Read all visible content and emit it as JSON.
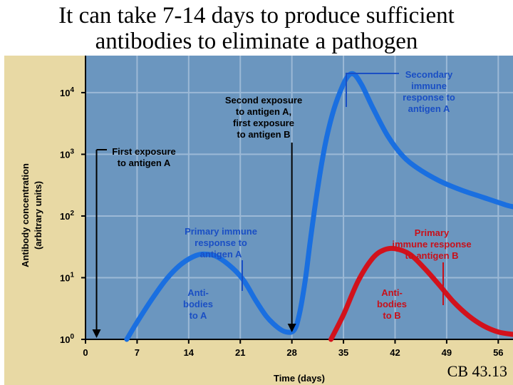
{
  "slide": {
    "title_line1": "It can take 7-14 days to produce sufficient",
    "title_line2": "antibodies to eliminate a pathogen",
    "footer": "CB 43.13"
  },
  "colors": {
    "frame": "#e8d9a4",
    "plot_bg": "#6b96bf",
    "grid": "#9cb9d6",
    "series_a": "#1a6fe0",
    "series_b": "#d2121c",
    "label_dark": "#000000",
    "label_blue": "#1a4fc4",
    "label_red": "#c8101a"
  },
  "chart_data": {
    "type": "line",
    "title": "",
    "xlabel": "Time (days)",
    "ylabel": "Antibody concentration",
    "ylabel_sub": "(arbitrary units)",
    "xlim": [
      0,
      58
    ],
    "ylim_log10": [
      0,
      4.6
    ],
    "x_ticks": [
      0,
      7,
      14,
      21,
      28,
      35,
      42,
      49,
      56
    ],
    "x_tick_labels": [
      "0",
      "7",
      "14",
      "21",
      "28",
      "35",
      "42",
      "49",
      "56"
    ],
    "y_ticks_log10": [
      0,
      1,
      2,
      3,
      4
    ],
    "y_tick_base": "10",
    "y_tick_exponents": [
      "0",
      "1",
      "2",
      "3",
      "4"
    ],
    "series": [
      {
        "name": "Antibodies to A",
        "x": [
          5.6,
          7,
          9,
          11,
          13,
          15,
          16.5,
          18,
          20,
          21.5,
          23,
          24.5,
          26,
          27.2,
          28.3,
          29,
          29.8,
          30.5,
          31.5,
          32.5,
          33.5,
          34.5,
          35.5,
          36.4,
          37.5,
          39,
          41,
          43,
          45,
          48,
          51,
          54,
          57,
          58
        ],
        "log10_y": [
          0,
          0.28,
          0.65,
          0.98,
          1.22,
          1.36,
          1.38,
          1.33,
          1.15,
          0.95,
          0.65,
          0.38,
          0.2,
          0.12,
          0.15,
          0.4,
          0.95,
          1.6,
          2.45,
          3.15,
          3.65,
          4.0,
          4.25,
          4.3,
          4.12,
          3.75,
          3.3,
          2.98,
          2.78,
          2.57,
          2.42,
          2.3,
          2.18,
          2.15
        ]
      },
      {
        "name": "Antibodies to B",
        "x": [
          33.3,
          35,
          37,
          39,
          40.5,
          42,
          44,
          46,
          48,
          50,
          52,
          54,
          56,
          58
        ],
        "log10_y": [
          0,
          0.4,
          0.95,
          1.32,
          1.45,
          1.47,
          1.38,
          1.15,
          0.88,
          0.6,
          0.38,
          0.22,
          0.12,
          0.08
        ]
      }
    ],
    "annotations": {
      "first_exposure": {
        "lines": [
          "First exposure",
          "to antigen A"
        ],
        "day": 1.5
      },
      "second_exposure": {
        "lines": [
          "Second exposure",
          "to antigen A,",
          "first exposure",
          "to antigen B"
        ],
        "day": 28
      },
      "secondary_response": {
        "lines": [
          "Secondary",
          "immune",
          "response to",
          "antigen A"
        ]
      },
      "primary_response_a": {
        "lines": [
          "Primary immune",
          "response to",
          "antigen A"
        ]
      },
      "primary_response_b": {
        "lines": [
          "Primary",
          "immune response",
          "to antigen B"
        ]
      },
      "antibodies_a": {
        "lines": [
          "Anti-",
          "bodies",
          "to A"
        ]
      },
      "antibodies_b": {
        "lines": [
          "Anti-",
          "bodies",
          "to B"
        ]
      }
    }
  }
}
